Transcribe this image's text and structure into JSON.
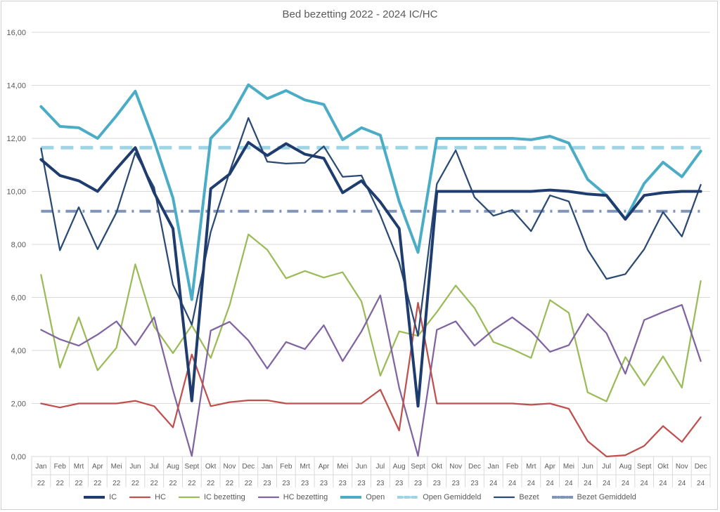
{
  "chart_data": {
    "type": "line",
    "title": "Bed bezetting 2022 - 2024 IC/HC",
    "xlabel": "",
    "ylabel": "",
    "ylim": [
      0,
      16
    ],
    "yticks": [
      "0,00",
      "2,00",
      "4,00",
      "6,00",
      "8,00",
      "10,00",
      "12,00",
      "14,00",
      "16,00"
    ],
    "grid": true,
    "legend": "bottom",
    "categories": [
      {
        "month": "Jan",
        "year": "22"
      },
      {
        "month": "Feb",
        "year": "22"
      },
      {
        "month": "Mrt",
        "year": "22"
      },
      {
        "month": "Apr",
        "year": "22"
      },
      {
        "month": "Mei",
        "year": "22"
      },
      {
        "month": "Jun",
        "year": "22"
      },
      {
        "month": "Jul",
        "year": "22"
      },
      {
        "month": "Aug",
        "year": "22"
      },
      {
        "month": "Sept",
        "year": "22"
      },
      {
        "month": "Okt",
        "year": "22"
      },
      {
        "month": "Nov",
        "year": "22"
      },
      {
        "month": "Dec",
        "year": "22"
      },
      {
        "month": "Jan",
        "year": "23"
      },
      {
        "month": "Feb",
        "year": "23"
      },
      {
        "month": "Mrt",
        "year": "23"
      },
      {
        "month": "Apr",
        "year": "23"
      },
      {
        "month": "Mei",
        "year": "23"
      },
      {
        "month": "Jun",
        "year": "23"
      },
      {
        "month": "Jul",
        "year": "23"
      },
      {
        "month": "Aug",
        "year": "23"
      },
      {
        "month": "Sept",
        "year": "23"
      },
      {
        "month": "Okt",
        "year": "23"
      },
      {
        "month": "Nov",
        "year": "23"
      },
      {
        "month": "Dec",
        "year": "23"
      },
      {
        "month": "Jan",
        "year": "24"
      },
      {
        "month": "Feb",
        "year": "24"
      },
      {
        "month": "Mrt",
        "year": "24"
      },
      {
        "month": "Apr",
        "year": "24"
      },
      {
        "month": "Mei",
        "year": "24"
      },
      {
        "month": "Jun",
        "year": "24"
      },
      {
        "month": "Jul",
        "year": "24"
      },
      {
        "month": "Aug",
        "year": "24"
      },
      {
        "month": "Sept",
        "year": "24"
      },
      {
        "month": "Okt",
        "year": "24"
      },
      {
        "month": "Nov",
        "year": "24"
      },
      {
        "month": "Dec",
        "year": "24"
      }
    ],
    "series": [
      {
        "name": "IC",
        "color": "#1f3c6e",
        "style": "solid-thick",
        "values": [
          11.2,
          10.6,
          10.4,
          10.0,
          10.85,
          11.65,
          9.95,
          8.6,
          2.1,
          10.1,
          10.65,
          11.85,
          11.35,
          11.8,
          11.4,
          11.25,
          9.95,
          10.4,
          9.6,
          8.6,
          1.9,
          10.0,
          10.0,
          10.0,
          10.0,
          10.0,
          10.0,
          10.05,
          10.0,
          9.9,
          9.85,
          8.95,
          9.85,
          9.95,
          10.0,
          10.0
        ]
      },
      {
        "name": "HC",
        "color": "#c0504d",
        "style": "solid",
        "values": [
          2.0,
          1.85,
          2.0,
          2.0,
          2.0,
          2.1,
          1.9,
          1.1,
          3.85,
          1.9,
          2.05,
          2.12,
          2.12,
          2.0,
          2.0,
          2.0,
          2.0,
          2.0,
          2.52,
          0.98,
          5.8,
          2.0,
          2.0,
          2.0,
          2.0,
          2.0,
          1.95,
          2.0,
          1.8,
          0.58,
          0.0,
          0.05,
          0.4,
          1.15,
          0.55,
          1.48
        ]
      },
      {
        "name": "IC bezetting",
        "color": "#9bbb59",
        "style": "solid",
        "values": [
          6.85,
          3.35,
          5.25,
          3.25,
          4.1,
          7.25,
          4.9,
          3.9,
          4.95,
          3.72,
          5.7,
          8.38,
          7.8,
          6.72,
          7.0,
          6.75,
          6.95,
          5.85,
          3.05,
          4.72,
          4.55,
          5.45,
          6.45,
          5.6,
          4.32,
          4.05,
          3.72,
          5.9,
          5.42,
          2.42,
          2.08,
          3.75,
          2.68,
          3.78,
          2.6,
          6.62
        ]
      },
      {
        "name": "HC bezetting",
        "color": "#8064a2",
        "style": "solid",
        "values": [
          4.78,
          4.42,
          4.18,
          4.6,
          5.1,
          4.2,
          5.25,
          2.5,
          0.02,
          4.75,
          5.08,
          4.38,
          3.32,
          4.32,
          4.05,
          4.95,
          3.6,
          4.72,
          6.08,
          2.6,
          0.02,
          4.78,
          5.1,
          4.18,
          4.78,
          5.25,
          4.72,
          3.95,
          4.2,
          5.38,
          4.65,
          3.12,
          5.15,
          5.45,
          5.72,
          3.6
        ]
      },
      {
        "name": "Open",
        "color": "#4bacc6",
        "style": "solid-thick",
        "values": [
          13.2,
          12.45,
          12.4,
          12.0,
          12.85,
          13.78,
          11.9,
          9.75,
          5.92,
          12.0,
          12.75,
          14.02,
          13.5,
          13.8,
          13.45,
          13.28,
          11.95,
          12.4,
          12.12,
          9.62,
          7.7,
          12.0,
          12.0,
          12.0,
          12.0,
          12.0,
          11.95,
          12.08,
          11.82,
          10.45,
          9.85,
          8.95,
          10.3,
          11.1,
          10.55,
          11.52
        ]
      },
      {
        "name": "Open Gemiddeld",
        "color": "#9fd4e4",
        "style": "dashed",
        "values": [
          11.65,
          11.65,
          11.65,
          11.65,
          11.65,
          11.65,
          11.65,
          11.65,
          11.65,
          11.65,
          11.65,
          11.65,
          11.65,
          11.65,
          11.65,
          11.65,
          11.65,
          11.65,
          11.65,
          11.65,
          11.65,
          11.65,
          11.65,
          11.65,
          11.65,
          11.65,
          11.65,
          11.65,
          11.65,
          11.65,
          11.65,
          11.65,
          11.65,
          11.65,
          11.65,
          11.65
        ]
      },
      {
        "name": "Bezet",
        "color": "#2a4a75",
        "style": "solid",
        "values": [
          11.62,
          7.78,
          9.4,
          7.82,
          9.2,
          11.45,
          10.15,
          6.48,
          4.97,
          8.47,
          10.73,
          12.77,
          11.12,
          11.05,
          11.08,
          11.7,
          10.55,
          10.6,
          9.1,
          7.32,
          4.55,
          10.28,
          11.55,
          9.78,
          9.08,
          9.3,
          8.5,
          9.85,
          9.62,
          7.8,
          6.7,
          6.88,
          7.82,
          9.22,
          8.3,
          10.25
        ]
      },
      {
        "name": "Bezet Gemiddeld",
        "color": "#7f94b8",
        "style": "dashdot",
        "values": [
          9.25,
          9.25,
          9.25,
          9.25,
          9.25,
          9.25,
          9.25,
          9.25,
          9.25,
          9.25,
          9.25,
          9.25,
          9.25,
          9.25,
          9.25,
          9.25,
          9.25,
          9.25,
          9.25,
          9.25,
          9.25,
          9.25,
          9.25,
          9.25,
          9.25,
          9.25,
          9.25,
          9.25,
          9.25,
          9.25,
          9.25,
          9.25,
          9.25,
          9.25,
          9.25,
          9.25
        ]
      }
    ]
  }
}
